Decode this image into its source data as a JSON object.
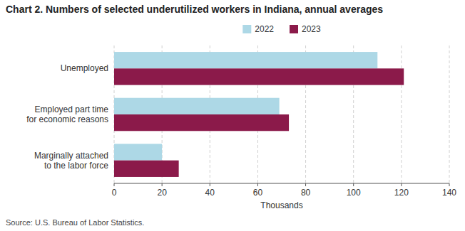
{
  "chart_data": {
    "type": "bar",
    "orientation": "horizontal",
    "title": "Chart 2.  Numbers of selected underutilized workers in Indiana, annual averages",
    "categories": [
      "Unemployed",
      "Employed part time\nfor economic reasons",
      "Marginally attached\nto the labor force"
    ],
    "series": [
      {
        "name": "2022",
        "color": "#add8e6",
        "values": [
          110,
          69,
          20
        ]
      },
      {
        "name": "2023",
        "color": "#8b1a4a",
        "values": [
          121,
          73,
          27
        ]
      }
    ],
    "xlim": [
      0,
      140
    ],
    "xticks": [
      0,
      20,
      40,
      60,
      80,
      100,
      120,
      140
    ],
    "xlabel": "Thousands",
    "source": "Source: U.S. Bureau of Labor Statistics.",
    "grid": true,
    "legend": "top"
  }
}
